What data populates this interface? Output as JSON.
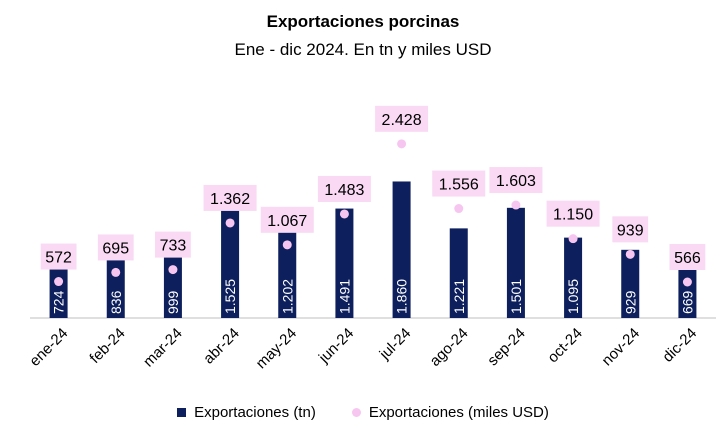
{
  "chart_data": {
    "type": "bar",
    "title": "Exportaciones porcinas",
    "subtitle": "Ene - dic 2024. En tn y miles USD",
    "categories": [
      "ene-24",
      "feb-24",
      "mar-24",
      "abr-24",
      "may-24",
      "jun-24",
      "jul-24",
      "ago-24",
      "sep-24",
      "oct-24",
      "nov-24",
      "dic-24"
    ],
    "series": [
      {
        "name": "Exportaciones (tn)",
        "type": "bar",
        "color": "#0d1f5c",
        "values": [
          724,
          836,
          999,
          1525,
          1202,
          1491,
          1860,
          1221,
          1501,
          1095,
          929,
          669
        ],
        "labels": [
          "724",
          "836",
          "999",
          "1.525",
          "1.202",
          "1.491",
          "1.860",
          "1.221",
          "1.501",
          "1.095",
          "929",
          "669"
        ]
      },
      {
        "name": "Exportaciones (miles USD)",
        "type": "scatter",
        "color": "#f7c6f0",
        "values": [
          572,
          695,
          733,
          1362,
          1067,
          1483,
          2428,
          1556,
          1603,
          1150,
          939,
          566
        ],
        "labels": [
          "572",
          "695",
          "733",
          "1.362",
          "1.067",
          "1.483",
          "2.428",
          "1.556",
          "1.603",
          "1.150",
          "939",
          "566"
        ]
      }
    ],
    "grid": false,
    "legend": "bottom"
  }
}
